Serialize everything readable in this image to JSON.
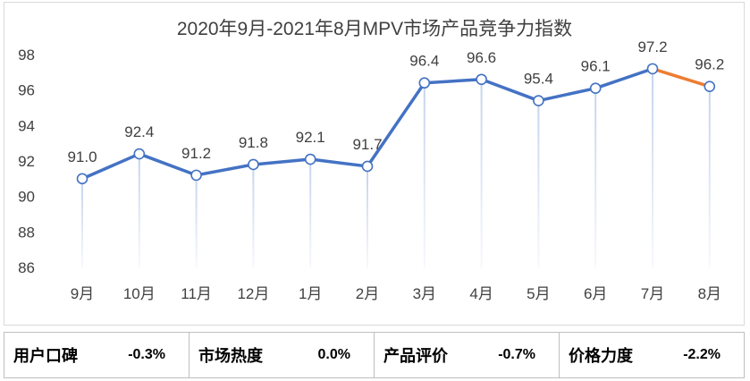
{
  "chart_data": {
    "type": "line",
    "title": "2020年9月-2021年8月MPV市场产品竞争力指数",
    "categories": [
      "9月",
      "10月",
      "11月",
      "12月",
      "1月",
      "2月",
      "3月",
      "4月",
      "5月",
      "6月",
      "7月",
      "8月"
    ],
    "values": [
      91.0,
      92.4,
      91.2,
      91.8,
      92.1,
      91.7,
      96.4,
      96.6,
      95.4,
      96.1,
      97.2,
      96.2
    ],
    "value_labels": [
      "91.0",
      "92.4",
      "91.2",
      "91.8",
      "92.1",
      "91.7",
      "96.4",
      "96.6",
      "95.4",
      "96.1",
      "97.2",
      "96.2"
    ],
    "ylim": [
      86,
      98
    ],
    "yticks": [
      86,
      88,
      90,
      92,
      94,
      96,
      98
    ],
    "grid": false,
    "legend": "none",
    "xlabel": "",
    "ylabel": "",
    "colors": {
      "line": "#4472c4",
      "last_segment": "#ed7d31",
      "drop_line": "#c5d3ec",
      "text": "#404040"
    }
  },
  "metrics": [
    {
      "label": "用户口碑",
      "value": "-0.3%"
    },
    {
      "label": "市场热度",
      "value": "0.0%"
    },
    {
      "label": "产品评价",
      "value": "-0.7%"
    },
    {
      "label": "价格力度",
      "value": "-2.2%"
    }
  ]
}
